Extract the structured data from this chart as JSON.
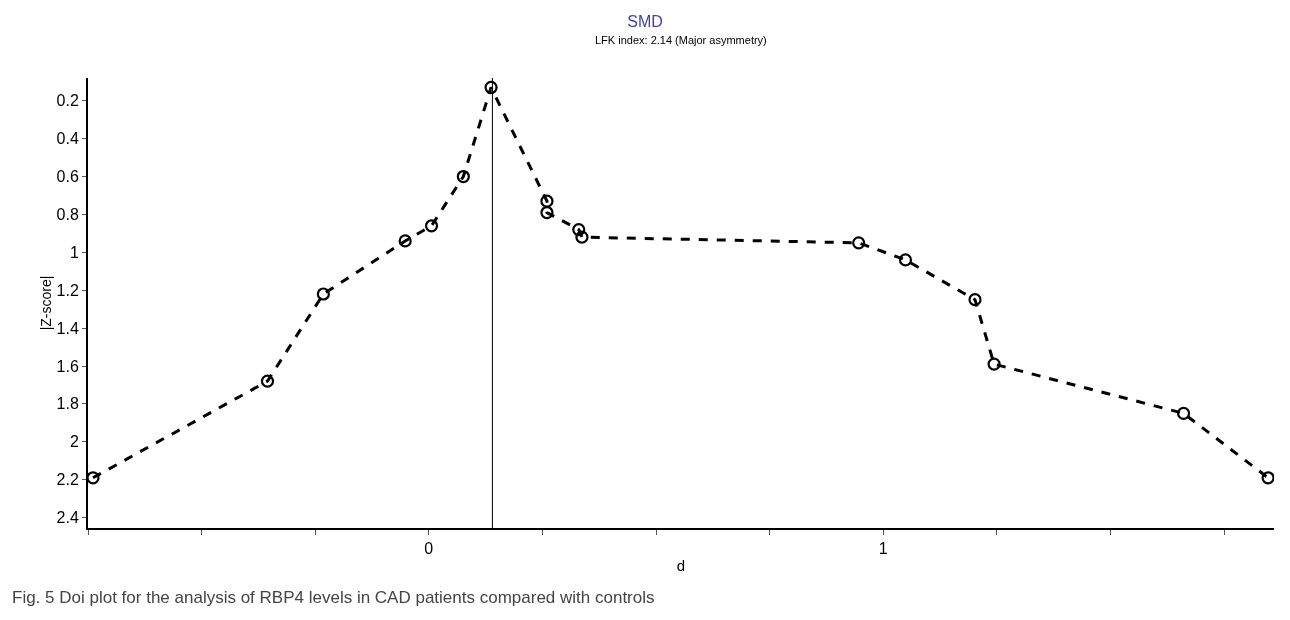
{
  "chart_data": {
    "type": "line",
    "title": "SMD",
    "subtitle": "LFK index: 2.14 (Major asymmetry)",
    "xlabel": "d",
    "ylabel": "|Z-score|",
    "annotations": [
      "Fig. 5 Doi plot for the analysis of RBP4 levels in CAD patients compared with controls"
    ],
    "x": [
      -0.739,
      -0.355,
      -0.232,
      -0.052,
      0.006,
      0.076,
      0.137,
      0.26,
      0.26,
      0.33,
      0.337,
      0.946,
      1.049,
      1.202,
      1.244,
      1.661,
      1.847
    ],
    "series": [
      {
        "color": "#000000",
        "values": [
          2.19,
          1.68,
          1.22,
          0.94,
          0.86,
          0.6,
          0.13,
          0.73,
          0.79,
          0.88,
          0.92,
          0.95,
          1.04,
          1.25,
          1.59,
          1.85,
          2.19
        ]
      }
    ],
    "ref_lines": [
      {
        "axis": "x",
        "value": 0.14,
        "color": "#000000",
        "line_style": "solid"
      }
    ],
    "xlim": [
      -0.75,
      1.86
    ],
    "ylim": [
      2.455,
      0.08
    ],
    "xticks": [
      {
        "value": -0.75,
        "label": null
      },
      {
        "value": -0.5,
        "label": null
      },
      {
        "value": -0.25,
        "label": null
      },
      0,
      {
        "value": 0.25,
        "label": null
      },
      {
        "value": 0.5,
        "label": null
      },
      {
        "value": 0.75,
        "label": null
      },
      1,
      {
        "value": 1.25,
        "label": null
      },
      {
        "value": 1.5,
        "label": null
      },
      {
        "value": 1.75,
        "label": null
      }
    ],
    "yticks": [
      0.2,
      0.4,
      0.6,
      0.8,
      1,
      1.2,
      1.4,
      1.6,
      1.8,
      2,
      2.2,
      2.4
    ],
    "marker": "circle",
    "line_style": "dashed"
  }
}
